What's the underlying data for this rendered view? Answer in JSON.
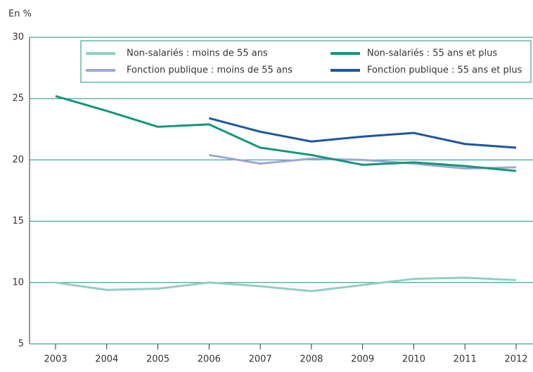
{
  "chart_data": {
    "type": "line",
    "y_label": "En %",
    "x": [
      2003,
      2004,
      2005,
      2006,
      2007,
      2008,
      2009,
      2010,
      2011,
      2012
    ],
    "xlim": [
      2003,
      2012
    ],
    "ylim": [
      5,
      30
    ],
    "yticks": [
      5,
      10,
      15,
      20,
      25,
      30
    ],
    "grid": true,
    "legend": "top",
    "series": [
      {
        "name": "Non-salariés : moins de 55 ans",
        "color": "#8fd0c4",
        "values": [
          10.0,
          9.4,
          9.5,
          10.0,
          9.7,
          9.3,
          9.8,
          10.3,
          10.4,
          10.2
        ]
      },
      {
        "name": "Fonction publique : moins de 55 ans",
        "color": "#9ea6d8",
        "values": [
          null,
          null,
          null,
          20.4,
          19.7,
          20.1,
          20.0,
          19.7,
          19.3,
          19.4
        ]
      },
      {
        "name": "Non-salariés : 55 ans et plus",
        "color": "#14967a",
        "values": [
          25.2,
          24.0,
          22.7,
          22.9,
          21.0,
          20.4,
          19.6,
          19.8,
          19.5,
          19.1
        ]
      },
      {
        "name": "Fonction publique : 55 ans et plus",
        "color": "#1d56a0",
        "values": [
          null,
          null,
          null,
          23.4,
          22.3,
          21.5,
          21.9,
          22.2,
          21.3,
          21.0
        ]
      }
    ]
  }
}
